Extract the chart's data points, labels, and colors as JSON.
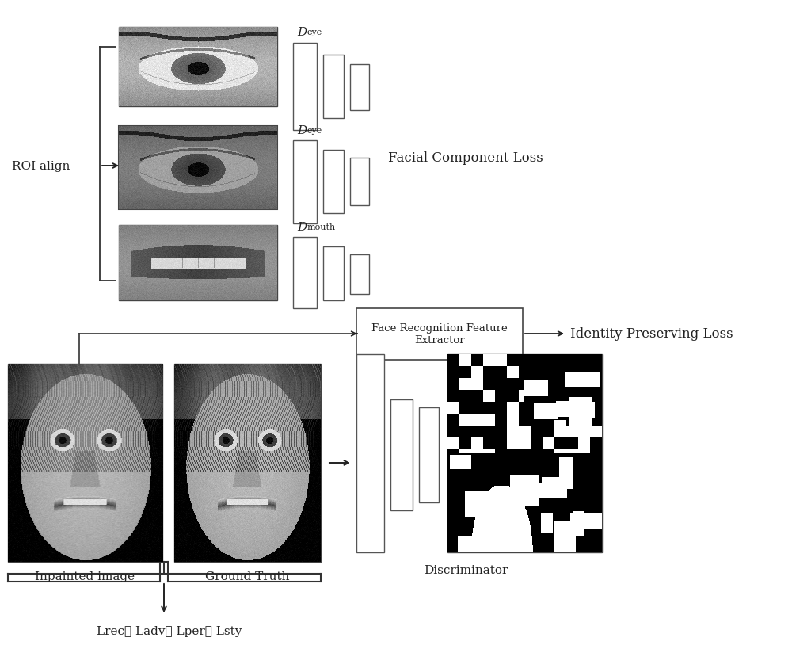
{
  "bg_color": "#ffffff",
  "roi_align_label": "ROI align",
  "facial_component_loss_label": "Facial Component Loss",
  "identity_preserving_loss_label": "Identity Preserving Loss",
  "face_recognition_label": "Face Recognition Feature\nExtractor",
  "discriminator_label": "Discriminator",
  "inpainted_label": "Inpainted image",
  "ground_truth_label": "Ground Truth",
  "d_eye_label1": "D",
  "d_eye_label1_sub": "eye",
  "d_eye_label2": "D",
  "d_eye_label2_sub": "eye",
  "d_mouth_label": "D",
  "d_mouth_label_sub": "mouth",
  "loss_labels": "Lrec、 Ladv、 Lper、 Lsty"
}
